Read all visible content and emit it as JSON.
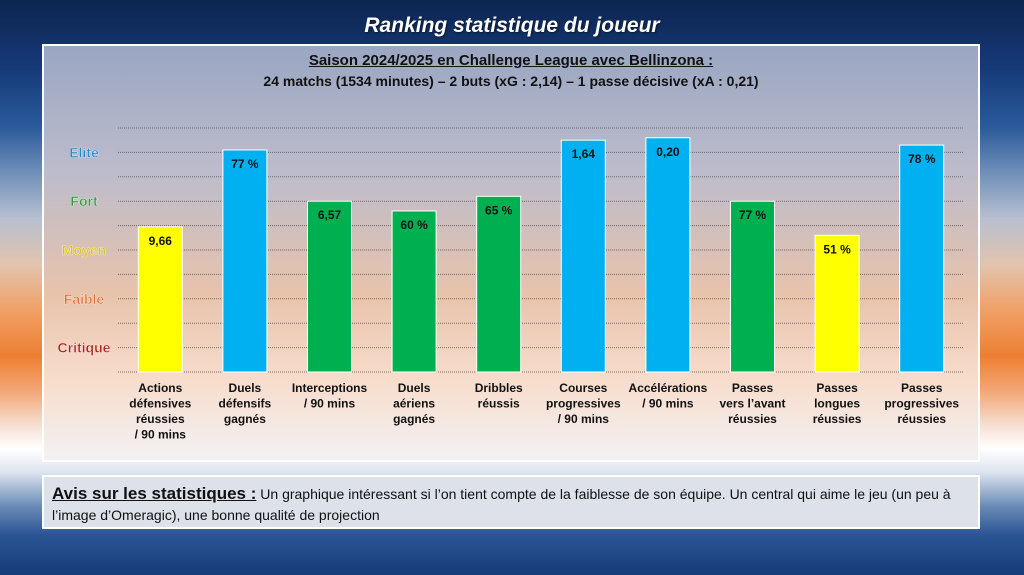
{
  "page_title": "Ranking statistique du joueur",
  "comment": {
    "label": "Avis sur les statistiques :",
    "text": " Un graphique intéressant si l’on tient compte de la faiblesse de son équipe. Un central qui aime le jeu (un peu à l’image d’Omeragic), une bonne qualité de projection"
  },
  "chart_data": {
    "type": "bar",
    "title": "Saison 2024/2025 en Challenge League avec Bellinzona :",
    "subtitle": "24 matchs (1534 minutes) – 2 buts (xG : 2,14) – 1 passe décisive (xA : 0,21)",
    "ylim": [
      0,
      10
    ],
    "grid": true,
    "levels": [
      {
        "label": "Elite",
        "y": 9,
        "color": "#2e86c8"
      },
      {
        "label": "Fort",
        "y": 7,
        "color": "#2e9e3e"
      },
      {
        "label": "Moyen",
        "y": 5,
        "color": "#e0c21a"
      },
      {
        "label": "Faible",
        "y": 3,
        "color": "#e0743a"
      },
      {
        "label": "Critique",
        "y": 1,
        "color": "#b21f1f"
      }
    ],
    "colors": {
      "Elite": "#00b0f0",
      "Fort": "#00b050",
      "Moyen": "#ffff00"
    },
    "bars": [
      {
        "category": [
          "Actions",
          "défensives",
          "réussies",
          "/ 90 mins"
        ],
        "value_label": "9,66",
        "rating": 5.95,
        "tier": "Moyen"
      },
      {
        "category": [
          "Duels",
          "défensifs",
          "gagnés"
        ],
        "value_label": "77 %",
        "rating": 9.1,
        "tier": "Elite"
      },
      {
        "category": [
          "Interceptions",
          "/ 90 mins"
        ],
        "value_label": "6,57",
        "rating": 7.0,
        "tier": "Fort"
      },
      {
        "category": [
          "Duels",
          "aériens",
          "gagnés"
        ],
        "value_label": "60 %",
        "rating": 6.6,
        "tier": "Fort"
      },
      {
        "category": [
          "Dribbles",
          "réussis"
        ],
        "value_label": "65 %",
        "rating": 7.2,
        "tier": "Fort"
      },
      {
        "category": [
          "Courses",
          "progressives",
          "/ 90 mins"
        ],
        "value_label": "1,64",
        "rating": 9.5,
        "tier": "Elite"
      },
      {
        "category": [
          "Accélérations",
          "/ 90 mins"
        ],
        "value_label": "0,20",
        "rating": 9.6,
        "tier": "Elite"
      },
      {
        "category": [
          "Passes",
          "vers l’avant",
          "réussies"
        ],
        "value_label": "77 %",
        "rating": 7.0,
        "tier": "Fort"
      },
      {
        "category": [
          "Passes",
          "longues",
          "réussies"
        ],
        "value_label": "51 %",
        "rating": 5.6,
        "tier": "Moyen"
      },
      {
        "category": [
          "Passes",
          "progressives",
          "réussies"
        ],
        "value_label": "78 %",
        "rating": 9.3,
        "tier": "Elite"
      }
    ]
  }
}
